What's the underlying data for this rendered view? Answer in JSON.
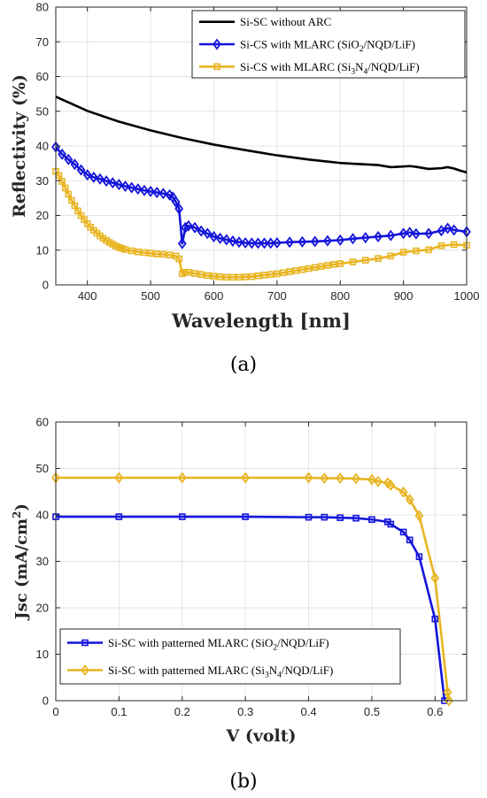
{
  "colors": {
    "black": "#000000",
    "blue": "#1414dc",
    "orange": "#e8b420",
    "grid": "#e4e4e4",
    "axis": "#262626"
  },
  "chart_data": [
    {
      "type": "line",
      "panel_label": "(a)",
      "xlabel": "Wavelength [nm]",
      "ylabel": "Reflectivity (%)",
      "xlim": [
        350,
        1000
      ],
      "ylim": [
        0,
        80
      ],
      "xticks": [
        400,
        500,
        600,
        700,
        800,
        900,
        1000
      ],
      "yticks": [
        0,
        10,
        20,
        30,
        40,
        50,
        60,
        70,
        80
      ],
      "grid": true,
      "legend_position": "top-right",
      "series": [
        {
          "name": "Si-SC without ARC",
          "legend": {
            "text": "Si-SC without ARC"
          },
          "color": "#000000",
          "marker": "none",
          "x": [
            350,
            400,
            450,
            500,
            550,
            600,
            650,
            700,
            750,
            800,
            820,
            840,
            860,
            880,
            900,
            910,
            920,
            940,
            960,
            970,
            980,
            990,
            1000
          ],
          "y": [
            54.2,
            50.1,
            47.0,
            44.5,
            42.3,
            40.4,
            38.8,
            37.3,
            36.1,
            35.1,
            34.9,
            34.7,
            34.5,
            33.9,
            34.1,
            34.2,
            34.0,
            33.4,
            33.6,
            33.9,
            33.5,
            32.9,
            32.4
          ]
        },
        {
          "name": "Si-CS with MLARC (SiO2/NQD/LiF)",
          "legend": {
            "pre": "Si-CS with MLARC (SiO",
            "sub1": "2",
            "mid": "/NQD/LiF)",
            "sub2": "",
            "post": ""
          },
          "color": "#1414dc",
          "marker": "diamond",
          "x": [
            350,
            360,
            370,
            380,
            390,
            400,
            410,
            420,
            430,
            440,
            450,
            460,
            470,
            480,
            490,
            500,
            510,
            520,
            530,
            535,
            540,
            545,
            550,
            555,
            560,
            570,
            580,
            590,
            600,
            610,
            620,
            630,
            640,
            650,
            660,
            670,
            680,
            690,
            700,
            720,
            740,
            760,
            780,
            800,
            820,
            840,
            860,
            880,
            900,
            910,
            920,
            940,
            960,
            970,
            980,
            1000
          ],
          "y": [
            39.7,
            37.6,
            36.1,
            34.7,
            33.1,
            31.7,
            31.0,
            30.5,
            29.9,
            29.4,
            28.9,
            28.4,
            28.0,
            27.6,
            27.2,
            26.9,
            26.6,
            26.3,
            25.9,
            25.3,
            23.9,
            21.9,
            11.9,
            16.5,
            17.0,
            16.5,
            15.5,
            14.8,
            13.9,
            13.4,
            13.0,
            12.6,
            12.3,
            12.1,
            12.0,
            12.0,
            12.0,
            12.0,
            12.1,
            12.3,
            12.4,
            12.5,
            12.7,
            12.9,
            13.3,
            13.6,
            13.9,
            14.2,
            14.8,
            15.1,
            14.7,
            14.8,
            15.6,
            16.3,
            15.8,
            15.3
          ]
        },
        {
          "name": "Si-CS with MLARC (Si3N4/NQD/LiF)",
          "legend": {
            "pre": "Si-CS with MLARC (Si",
            "sub1": "3",
            "mid": "N",
            "sub2": "4",
            "post": "/NQD/LiF)"
          },
          "color": "#e8b420",
          "marker": "square",
          "x": [
            350,
            355,
            360,
            365,
            370,
            375,
            380,
            385,
            390,
            395,
            400,
            405,
            410,
            415,
            420,
            425,
            430,
            435,
            440,
            445,
            450,
            455,
            460,
            470,
            480,
            490,
            500,
            510,
            520,
            530,
            540,
            545,
            550,
            555,
            560,
            570,
            580,
            590,
            600,
            610,
            620,
            630,
            640,
            650,
            660,
            670,
            680,
            690,
            700,
            710,
            720,
            730,
            740,
            750,
            760,
            770,
            780,
            790,
            800,
            820,
            840,
            860,
            880,
            900,
            920,
            940,
            960,
            980,
            1000
          ],
          "y": [
            32.7,
            31.5,
            29.8,
            27.9,
            26.1,
            24.3,
            22.8,
            21.3,
            20.0,
            18.8,
            17.6,
            16.6,
            15.7,
            14.9,
            14.1,
            13.4,
            12.8,
            12.2,
            11.7,
            11.2,
            10.8,
            10.5,
            10.2,
            9.8,
            9.5,
            9.3,
            9.1,
            8.9,
            8.8,
            8.6,
            8.3,
            7.5,
            3.2,
            3.6,
            3.6,
            3.3,
            3.0,
            2.7,
            2.5,
            2.3,
            2.2,
            2.2,
            2.2,
            2.3,
            2.4,
            2.6,
            2.8,
            3.0,
            3.2,
            3.5,
            3.8,
            4.1,
            4.4,
            4.7,
            5.0,
            5.3,
            5.6,
            5.9,
            6.1,
            6.6,
            7.1,
            7.6,
            8.3,
            9.4,
            9.8,
            10.1,
            11.3,
            11.6,
            11.4
          ]
        }
      ]
    },
    {
      "type": "line",
      "panel_label": "(b)",
      "xlabel": "V (volt)",
      "ylabel": "Jsc (mA/cm²)",
      "ylabel_parts": {
        "main": "Jsc (mA/cm",
        "sup": "2",
        "close": ")"
      },
      "xlim": [
        0,
        0.65
      ],
      "ylim": [
        0,
        60
      ],
      "xticks": [
        0,
        0.1,
        0.2,
        0.3,
        0.4,
        0.5,
        0.6
      ],
      "xtick_labels": [
        "0",
        "0.1",
        "0.2",
        "0.3",
        "0.4",
        "0.5",
        "0.6"
      ],
      "yticks": [
        0,
        10,
        20,
        30,
        40,
        50,
        60
      ],
      "grid": true,
      "legend_position": "bottom-left",
      "series": [
        {
          "name": "Si-SC with patterned MLARC (SiO2/NQD/LiF)",
          "legend": {
            "pre": "Si-SC with patterned MLARC (SiO",
            "sub1": "2",
            "mid": "/NQD/LiF)",
            "sub2": "",
            "post": ""
          },
          "color": "#1414dc",
          "marker": "square",
          "x": [
            0,
            0.1,
            0.2,
            0.3,
            0.4,
            0.425,
            0.45,
            0.475,
            0.5,
            0.525,
            0.53,
            0.55,
            0.56,
            0.575,
            0.6,
            0.615
          ],
          "y": [
            39.6,
            39.6,
            39.6,
            39.6,
            39.5,
            39.5,
            39.4,
            39.3,
            39.0,
            38.5,
            38.0,
            36.3,
            34.6,
            31.0,
            17.6,
            0.0
          ]
        },
        {
          "name": "Si-SC with patterned MLARC (Si3N4/NQD/LiF)",
          "legend": {
            "pre": "Si-SC with patterned MLARC (Si",
            "sub1": "3",
            "mid": "N",
            "sub2": "4",
            "post": "/NQD/LiF)"
          },
          "color": "#e8b420",
          "marker": "diamond",
          "x": [
            0,
            0.1,
            0.2,
            0.3,
            0.4,
            0.425,
            0.45,
            0.475,
            0.5,
            0.51,
            0.525,
            0.53,
            0.55,
            0.56,
            0.575,
            0.6,
            0.62,
            0.622
          ],
          "y": [
            48.0,
            48.0,
            48.0,
            48.0,
            48.0,
            47.9,
            47.9,
            47.8,
            47.6,
            47.2,
            46.9,
            46.4,
            44.9,
            43.3,
            39.8,
            26.4,
            1.8,
            0.0
          ]
        }
      ]
    }
  ]
}
